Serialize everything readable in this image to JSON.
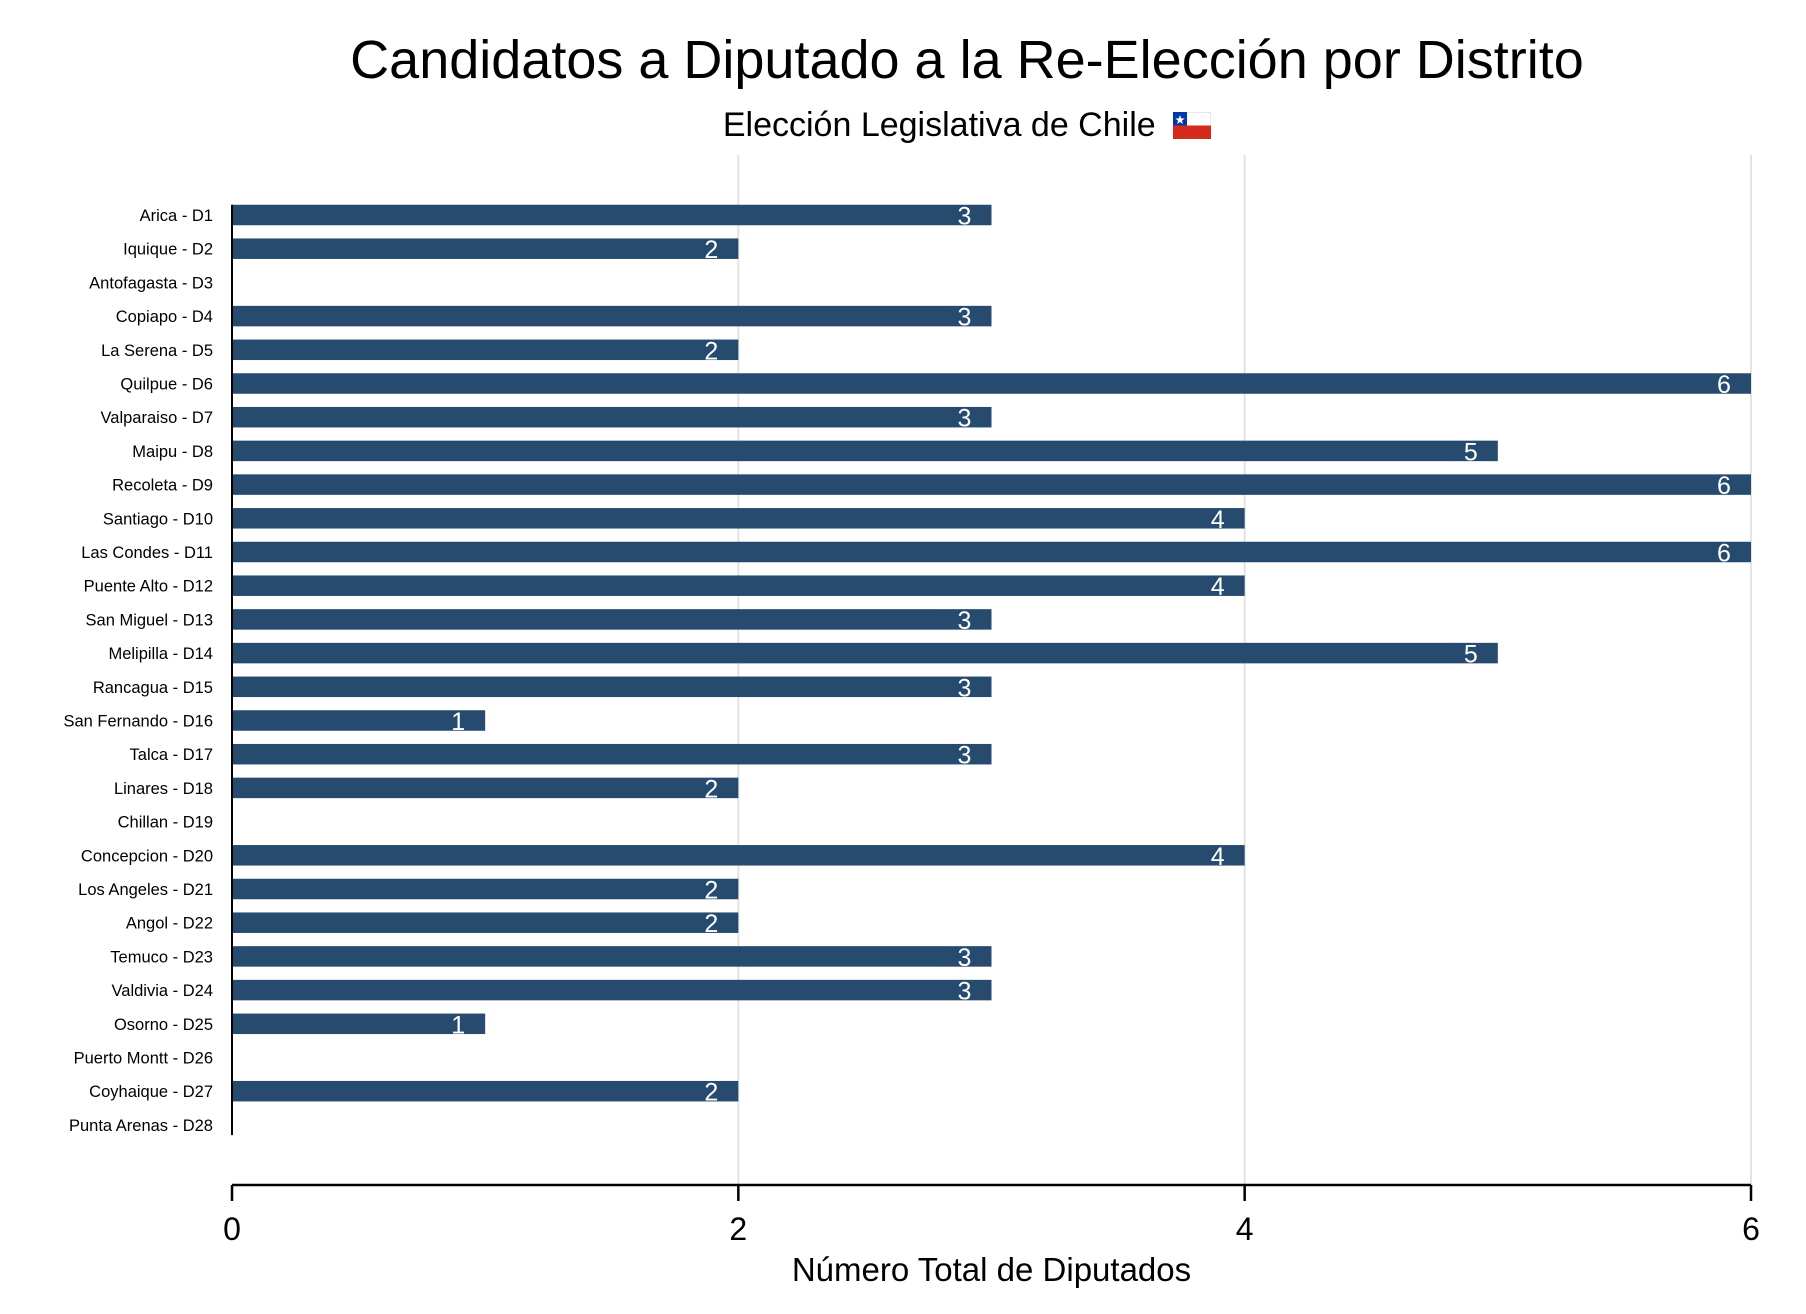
{
  "chart_data": {
    "type": "bar",
    "orientation": "horizontal",
    "title": "Candidatos a Diputado a la Re-Elección por Distrito",
    "subtitle": "Elección Legislativa de Chile",
    "subtitle_icon": "chile-flag-icon",
    "xlabel": "Número Total de Diputados",
    "ylabel": "",
    "xlim": [
      0,
      6
    ],
    "xticks": [
      0,
      2,
      4,
      6
    ],
    "x_tick_labels": [
      "0",
      "2",
      "4",
      "6"
    ],
    "grid": "vertical",
    "legend": "none",
    "show_data_labels": true,
    "bar_color": "#274B6E",
    "categories": [
      "Arica - D1",
      "Iquique - D2",
      "Antofagasta - D3",
      "Copiapo - D4",
      "La Serena - D5",
      "Quilpue - D6",
      "Valparaiso - D7",
      "Maipu - D8",
      "Recoleta - D9",
      "Santiago - D10",
      "Las Condes - D11",
      "Puente Alto - D12",
      "San Miguel - D13",
      "Melipilla - D14",
      "Rancagua - D15",
      "San Fernando - D16",
      "Talca - D17",
      "Linares - D18",
      "Chillan - D19",
      "Concepcion - D20",
      "Los Angeles - D21",
      "Angol - D22",
      "Temuco - D23",
      "Valdivia - D24",
      "Osorno - D25",
      "Puerto Montt - D26",
      "Coyhaique - D27",
      "Punta Arenas - D28"
    ],
    "values": [
      3,
      2,
      0,
      3,
      2,
      6,
      3,
      5,
      6,
      4,
      6,
      4,
      3,
      5,
      3,
      1,
      3,
      2,
      0,
      4,
      2,
      2,
      3,
      3,
      1,
      0,
      2,
      0
    ]
  }
}
